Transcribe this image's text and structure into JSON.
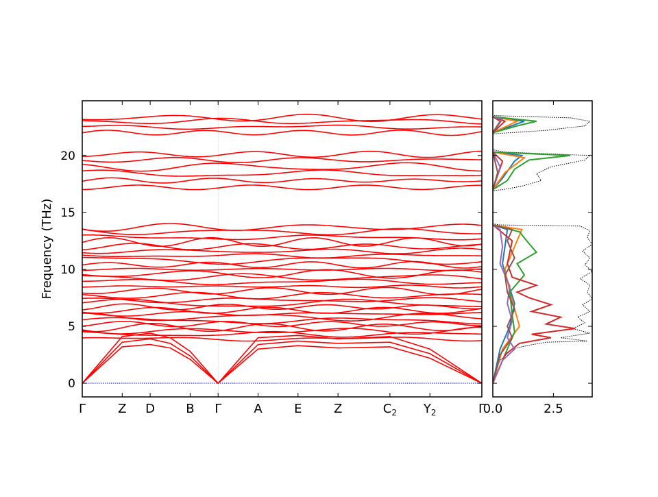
{
  "chart_data": [
    {
      "type": "line",
      "title": "",
      "ylabel": "Frequency (THz)",
      "xlabel": "",
      "ylim": [
        -1.2,
        24.8
      ],
      "xlim": [
        0,
        10
      ],
      "x_ticks": [
        {
          "label": "Γ",
          "sub": "",
          "x": 0
        },
        {
          "label": "Z",
          "sub": "",
          "x": 1
        },
        {
          "label": "D",
          "sub": "",
          "x": 1.7
        },
        {
          "label": "B",
          "sub": "",
          "x": 2.7
        },
        {
          "label": "Γ",
          "sub": "",
          "x": 3.4
        },
        {
          "label": "A",
          "sub": "",
          "x": 4.4
        },
        {
          "label": "E",
          "sub": "",
          "x": 5.4
        },
        {
          "label": "Z",
          "sub": "",
          "x": 6.4
        },
        {
          "label": "C",
          "sub": "2",
          "x": 7.7
        },
        {
          "label": "Y",
          "sub": "2",
          "x": 8.7
        },
        {
          "label": "Γ",
          "sub": "",
          "x": 10
        }
      ],
      "y_ticks": [
        0,
        5,
        10,
        15,
        20
      ],
      "grid": false,
      "line_color": "#ff0000",
      "zero_line_color": "#0000ff",
      "acoustic": [
        [
          0,
          3.2,
          3.4,
          3.1,
          2.1,
          0,
          3.0,
          3.3,
          3.1,
          3.2,
          2.2,
          0
        ],
        [
          0,
          3.6,
          3.9,
          3.5,
          2.4,
          0,
          3.4,
          3.7,
          3.5,
          3.6,
          2.6,
          0
        ],
        [
          0,
          4.1,
          4.4,
          4.0,
          2.8,
          0,
          4.0,
          4.2,
          3.9,
          4.1,
          3.0,
          0
        ]
      ],
      "acoustic_x": [
        0,
        1,
        1.7,
        2.2,
        2.7,
        3.4,
        4.4,
        5.4,
        6.4,
        7.7,
        8.7,
        10
      ],
      "band_centers": [
        3.9,
        4.3,
        4.6,
        4.9,
        5.2,
        5.5,
        5.8,
        6.1,
        6.4,
        6.7,
        7.0,
        7.3,
        7.7,
        8.1,
        8.5,
        8.9,
        9.3,
        9.6,
        10.0,
        10.4,
        10.8,
        11.2,
        11.6,
        12.0,
        12.4,
        12.8,
        13.3,
        13.7,
        17.2,
        17.8,
        18.4,
        19.0,
        19.6,
        20.1,
        22.0,
        22.5,
        23.0,
        23.3
      ],
      "dos": {
        "xlim": [
          0,
          4.1
        ],
        "x_ticks": [
          "0.0",
          "2.5"
        ],
        "x_tick_values": [
          0,
          2.5
        ],
        "total_color": "#000000",
        "total": [
          [
            0,
            0
          ],
          [
            0.3,
            0.02
          ],
          [
            1.0,
            0.1
          ],
          [
            2.0,
            0.3
          ],
          [
            3.0,
            0.8
          ],
          [
            3.3,
            1.4
          ],
          [
            3.6,
            2.2
          ],
          [
            3.7,
            3.9
          ],
          [
            4.0,
            2.8
          ],
          [
            4.4,
            4.0
          ],
          [
            4.8,
            3.3
          ],
          [
            5.3,
            3.8
          ],
          [
            5.8,
            3.5
          ],
          [
            6.3,
            4.0
          ],
          [
            6.9,
            3.7
          ],
          [
            7.4,
            4.1
          ],
          [
            8.0,
            3.9
          ],
          [
            8.6,
            4.0
          ],
          [
            9.2,
            3.6
          ],
          [
            9.8,
            4.1
          ],
          [
            10.4,
            3.8
          ],
          [
            11.0,
            4.0
          ],
          [
            11.6,
            3.7
          ],
          [
            12.2,
            4.1
          ],
          [
            12.8,
            3.9
          ],
          [
            13.4,
            4.0
          ],
          [
            13.8,
            3.6
          ],
          [
            13.9,
            0.3
          ],
          [
            14.0,
            0
          ],
          [
            16.9,
            0
          ],
          [
            17.0,
            0.4
          ],
          [
            17.3,
            1.2
          ],
          [
            17.8,
            2.0
          ],
          [
            18.4,
            1.8
          ],
          [
            19.0,
            2.4
          ],
          [
            19.6,
            3.8
          ],
          [
            20.0,
            4.0
          ],
          [
            20.3,
            0.5
          ],
          [
            20.5,
            0
          ],
          [
            21.9,
            0
          ],
          [
            22.2,
            2.2
          ],
          [
            22.6,
            3.8
          ],
          [
            23.0,
            4.0
          ],
          [
            23.3,
            3.2
          ],
          [
            23.5,
            0
          ]
        ],
        "projections": [
          {
            "color": "#1f77b4",
            "points": [
              [
                0,
                0
              ],
              [
                3.0,
                0.3
              ],
              [
                5.0,
                0.7
              ],
              [
                7.0,
                0.9
              ],
              [
                9.0,
                0.6
              ],
              [
                10.5,
                0.4
              ],
              [
                12.0,
                0.5
              ],
              [
                13.5,
                0.6
              ],
              [
                13.9,
                0
              ],
              [
                17.0,
                0
              ],
              [
                18.0,
                0.4
              ],
              [
                19.5,
                0.9
              ],
              [
                20.0,
                1.2
              ],
              [
                20.3,
                0
              ],
              [
                22.0,
                0
              ],
              [
                23.0,
                1.3
              ],
              [
                23.4,
                0
              ]
            ]
          },
          {
            "color": "#ff7f0e",
            "points": [
              [
                0,
                0
              ],
              [
                3.0,
                0.4
              ],
              [
                5.0,
                1.1
              ],
              [
                6.5,
                0.9
              ],
              [
                8.0,
                0.7
              ],
              [
                10.0,
                0.5
              ],
              [
                12.0,
                0.9
              ],
              [
                13.5,
                1.2
              ],
              [
                13.9,
                0
              ],
              [
                17.0,
                0
              ],
              [
                18.5,
                0.5
              ],
              [
                19.8,
                1.3
              ],
              [
                20.3,
                0
              ],
              [
                22.0,
                0
              ],
              [
                23.0,
                1.0
              ],
              [
                23.4,
                0
              ]
            ]
          },
          {
            "color": "#2ca02c",
            "points": [
              [
                0,
                0
              ],
              [
                3.0,
                0.6
              ],
              [
                4.5,
                0.9
              ],
              [
                6.0,
                0.8
              ],
              [
                8.0,
                0.7
              ],
              [
                9.5,
                1.3
              ],
              [
                10.5,
                1.0
              ],
              [
                11.5,
                1.8
              ],
              [
                12.5,
                1.4
              ],
              [
                13.3,
                1.1
              ],
              [
                13.9,
                0
              ],
              [
                17.0,
                0
              ],
              [
                17.8,
                0.6
              ],
              [
                18.8,
                0.9
              ],
              [
                19.6,
                1.5
              ],
              [
                20.0,
                3.2
              ],
              [
                20.3,
                0
              ],
              [
                22.0,
                0
              ],
              [
                22.6,
                1.0
              ],
              [
                23.0,
                1.8
              ],
              [
                23.4,
                0
              ]
            ]
          },
          {
            "color": "#d62728",
            "points": [
              [
                0,
                0
              ],
              [
                2.5,
                0.5
              ],
              [
                3.5,
                1.1
              ],
              [
                4.0,
                2.4
              ],
              [
                4.3,
                1.6
              ],
              [
                4.8,
                3.4
              ],
              [
                5.2,
                2.2
              ],
              [
                5.8,
                2.8
              ],
              [
                6.3,
                1.6
              ],
              [
                6.9,
                2.4
              ],
              [
                7.5,
                1.5
              ],
              [
                8.0,
                1.0
              ],
              [
                8.6,
                1.8
              ],
              [
                9.3,
                0.8
              ],
              [
                10.5,
                0.6
              ],
              [
                12.5,
                0.8
              ],
              [
                13.9,
                0
              ],
              [
                17.0,
                0
              ],
              [
                19.5,
                0.4
              ],
              [
                20.3,
                0
              ],
              [
                22.0,
                0
              ],
              [
                23.0,
                0.5
              ],
              [
                23.4,
                0
              ]
            ]
          },
          {
            "color": "#9467bd",
            "points": [
              [
                0,
                0
              ],
              [
                2.0,
                0.4
              ],
              [
                3.0,
                0.9
              ],
              [
                4.0,
                0.6
              ],
              [
                5.5,
                0.8
              ],
              [
                7.0,
                0.6
              ],
              [
                8.5,
                0.7
              ],
              [
                10.5,
                0.3
              ],
              [
                12.0,
                0.4
              ],
              [
                13.5,
                0.3
              ],
              [
                13.9,
                0
              ],
              [
                17.0,
                0
              ],
              [
                19.0,
                0.3
              ],
              [
                20.3,
                0
              ],
              [
                22.0,
                0
              ],
              [
                23.2,
                0.4
              ],
              [
                23.4,
                0
              ]
            ]
          },
          {
            "color": "#8c564b",
            "points": [
              [
                0,
                0
              ],
              [
                2.5,
                0.3
              ],
              [
                4.0,
                0.8
              ],
              [
                5.0,
                0.6
              ],
              [
                6.5,
                0.9
              ],
              [
                8.0,
                0.6
              ],
              [
                9.5,
                0.5
              ],
              [
                11.0,
                0.9
              ],
              [
                12.5,
                0.6
              ],
              [
                13.5,
                0.8
              ],
              [
                13.9,
                0
              ],
              [
                17.0,
                0
              ],
              [
                18.5,
                0.2
              ],
              [
                20.3,
                0
              ],
              [
                22.0,
                0
              ],
              [
                23.0,
                0.3
              ],
              [
                23.4,
                0
              ]
            ]
          }
        ]
      }
    }
  ]
}
